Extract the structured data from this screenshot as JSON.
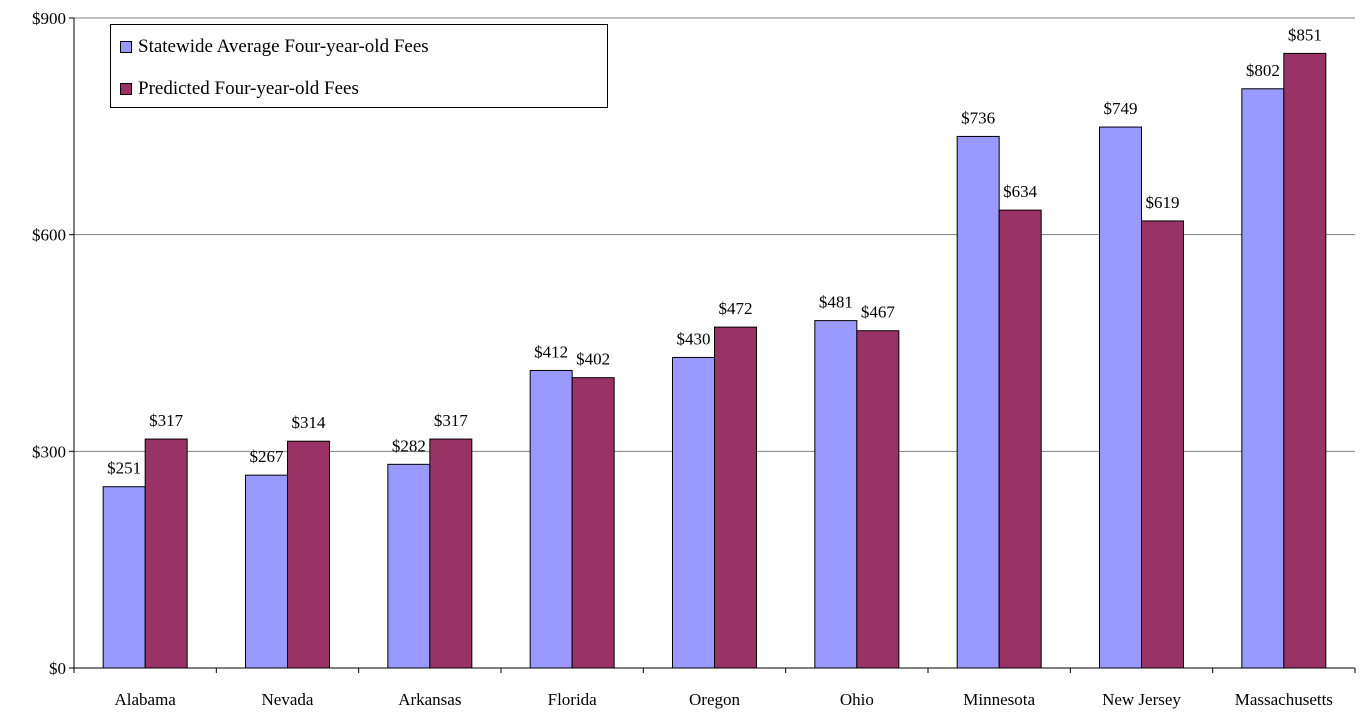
{
  "chart_data": {
    "type": "bar",
    "categories": [
      "Alabama",
      "Nevada",
      "Arkansas",
      "Florida",
      "Oregon",
      "Ohio",
      "Minnesota",
      "New Jersey",
      "Massachusetts"
    ],
    "series": [
      {
        "name": "Statewide Average Four-year-old Fees",
        "color": "#9999ff",
        "values": [
          251,
          267,
          282,
          412,
          430,
          481,
          736,
          749,
          802
        ],
        "labels": [
          "$251",
          "$267",
          "$282",
          "$412",
          "$430",
          "$481",
          "$736",
          "$749",
          "$802"
        ]
      },
      {
        "name": "Predicted Four-year-old Fees",
        "color": "#993366",
        "values": [
          317,
          314,
          317,
          402,
          472,
          467,
          634,
          619,
          851
        ],
        "labels": [
          "$317",
          "$314",
          "$317",
          "$402",
          "$472",
          "$467",
          "$634",
          "$619",
          "$851"
        ]
      }
    ],
    "ylim": [
      0,
      900
    ],
    "yticks": [
      0,
      300,
      600,
      900
    ],
    "ytick_labels": [
      "$0",
      "$300",
      "$600",
      "$900"
    ],
    "grid": true,
    "legend_position": "top-left"
  }
}
